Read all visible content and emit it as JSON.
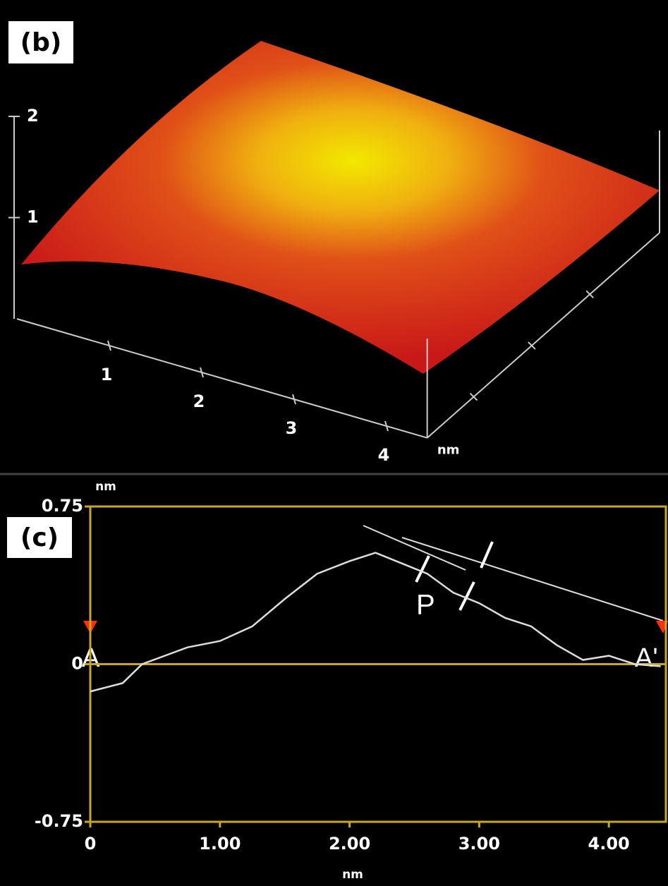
{
  "chart_data": [
    {
      "type": "surface",
      "label": "(b)",
      "x_label": "nm",
      "xlim": [
        0,
        4.44
      ],
      "xticks": [
        1,
        2,
        3,
        4
      ],
      "zlim": [
        0,
        2
      ],
      "zticks": [
        1,
        2
      ]
    },
    {
      "type": "line",
      "label": "(c)",
      "x_label": "nm",
      "y_label": "nm",
      "x": [
        0,
        0.25,
        0.4,
        0.75,
        1.0,
        1.25,
        1.5,
        1.75,
        2.0,
        2.2,
        2.4,
        2.6,
        2.8,
        3.0,
        3.2,
        3.4,
        3.6,
        3.8,
        4.0,
        4.2,
        4.4
      ],
      "series": [
        {
          "color": "#dddddd",
          "values": [
            -0.13,
            -0.09,
            0,
            0.08,
            0.11,
            0.18,
            0.31,
            0.43,
            0.49,
            0.53,
            0.48,
            0.43,
            0.34,
            0.29,
            0.22,
            0.18,
            0.09,
            0.02,
            0.04,
            0,
            -0.01
          ]
        }
      ],
      "xlim": [
        0,
        4.44
      ],
      "ylim": [
        -0.75,
        0.75
      ],
      "xticks": [
        0,
        {
          "value": 1,
          "label": "1.00"
        },
        {
          "value": 2,
          "label": "2.00"
        },
        {
          "value": 3,
          "label": "3.00"
        },
        {
          "value": 4,
          "label": "4.00"
        }
      ],
      "yticks": [
        -0.75,
        0,
        0.75
      ],
      "frame_color": "#c8a820",
      "annotations": [
        "P",
        "A",
        "A'"
      ]
    }
  ]
}
